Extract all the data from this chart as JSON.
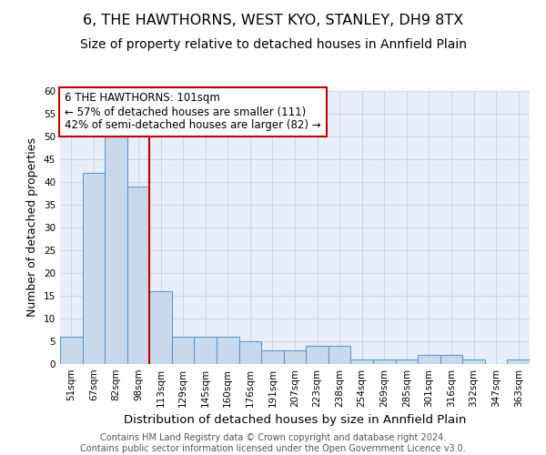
{
  "title": "6, THE HAWTHORNS, WEST KYO, STANLEY, DH9 8TX",
  "subtitle": "Size of property relative to detached houses in Annfield Plain",
  "xlabel": "Distribution of detached houses by size in Annfield Plain",
  "ylabel": "Number of detached properties",
  "categories": [
    "51sqm",
    "67sqm",
    "82sqm",
    "98sqm",
    "113sqm",
    "129sqm",
    "145sqm",
    "160sqm",
    "176sqm",
    "191sqm",
    "207sqm",
    "223sqm",
    "238sqm",
    "254sqm",
    "269sqm",
    "285sqm",
    "301sqm",
    "316sqm",
    "332sqm",
    "347sqm",
    "363sqm"
  ],
  "values": [
    6,
    42,
    50,
    39,
    16,
    6,
    6,
    6,
    5,
    3,
    3,
    4,
    4,
    1,
    1,
    1,
    2,
    2,
    1,
    0,
    1
  ],
  "bar_color": "#c9d9ec",
  "bar_edge_color": "#5b9bd5",
  "bar_linewidth": 0.8,
  "vline_x": 3.5,
  "vline_color": "#c00000",
  "annotation_box_text": "6 THE HAWTHORNS: 101sqm\n← 57% of detached houses are smaller (111)\n42% of semi-detached houses are larger (82) →",
  "annotation_box_color": "#c00000",
  "annotation_box_facecolor": "white",
  "ylim": [
    0,
    60
  ],
  "yticks": [
    0,
    5,
    10,
    15,
    20,
    25,
    30,
    35,
    40,
    45,
    50,
    55,
    60
  ],
  "grid_color": "#c8d4e8",
  "background_color": "#e8eef8",
  "footer": "Contains HM Land Registry data © Crown copyright and database right 2024.\nContains public sector information licensed under the Open Government Licence v3.0.",
  "title_fontsize": 11.5,
  "subtitle_fontsize": 10,
  "ylabel_fontsize": 9,
  "xlabel_fontsize": 9.5,
  "tick_fontsize": 7.5,
  "annotation_fontsize": 8.5,
  "footer_fontsize": 7
}
